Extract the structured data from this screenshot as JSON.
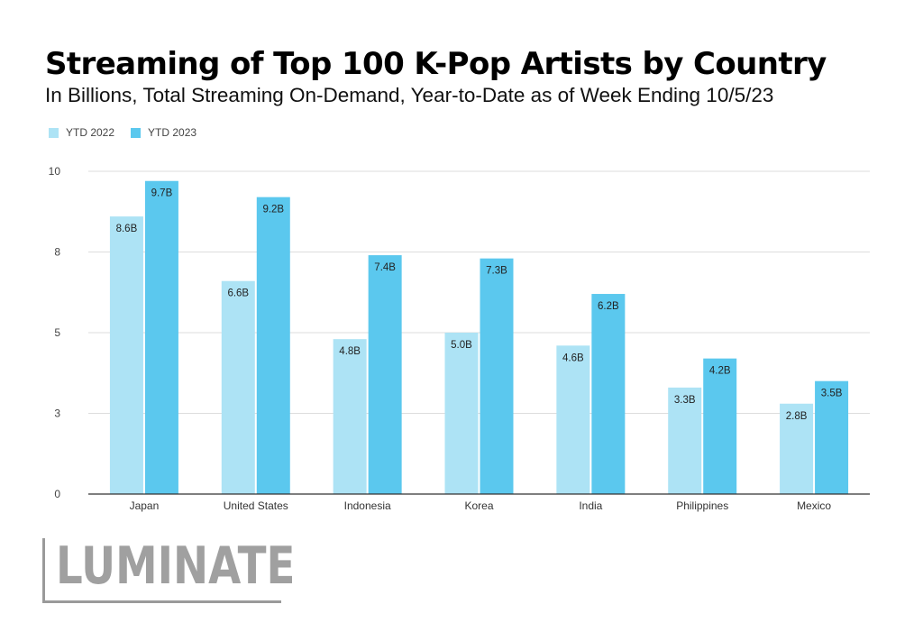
{
  "chart_data": {
    "type": "bar",
    "title": "Streaming of Top 100 K-Pop Artists by Country",
    "subtitle": "In Billions, Total Streaming On-Demand, Year-to-Date as of Week Ending 10/5/23",
    "categories": [
      "Japan",
      "United States",
      "Indonesia",
      "Korea",
      "India",
      "Philippines",
      "Mexico"
    ],
    "series": [
      {
        "name": "YTD 2022",
        "color": "#ade3f5",
        "values": [
          8.6,
          6.6,
          4.8,
          5.0,
          4.6,
          3.3,
          2.8
        ],
        "labels": [
          "8.6B",
          "6.6B",
          "4.8B",
          "5.0B",
          "4.6B",
          "3.3B",
          "2.8B"
        ]
      },
      {
        "name": "YTD 2023",
        "color": "#5bc8ee",
        "values": [
          9.7,
          9.2,
          7.4,
          7.3,
          6.2,
          4.2,
          3.5
        ],
        "labels": [
          "9.7B",
          "9.2B",
          "7.4B",
          "7.3B",
          "6.2B",
          "4.2B",
          "3.5B"
        ]
      }
    ],
    "ylim": [
      0,
      10
    ],
    "yticks": [
      0,
      2.5,
      5,
      7.5,
      10
    ],
    "ytick_labels": [
      "0",
      "3",
      "5",
      "8",
      "10"
    ],
    "xlabel": "",
    "ylabel": "",
    "grid": true,
    "legend_position": "top-left"
  },
  "logo": {
    "text": "LUMINATE"
  }
}
